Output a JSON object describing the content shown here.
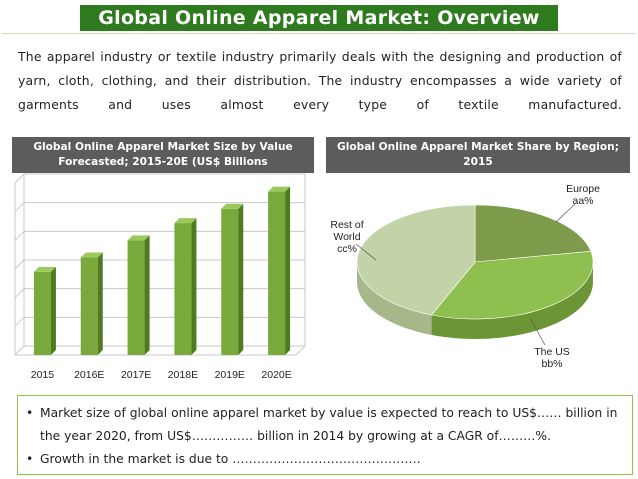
{
  "header": {
    "title": "Global Online Apparel Market: Overview"
  },
  "intro": {
    "text": "The apparel industry or textile industry primarily deals with the designing and production of yarn, cloth, clothing, and their distribution. The industry encompasses a wide variety of garments and uses almost every type of textile manufactured."
  },
  "panels": {
    "left_title": "Global Online Apparel Market Size by Value Forecasted; 2015-20E (US$ Billions",
    "right_title": "Global Online Apparel Market Share by Region; 2015"
  },
  "chart_data": [
    {
      "type": "bar",
      "title": "Global Online Apparel Market Size by Value Forecasted; 2015-20E (US$ Billions",
      "categories": [
        "2015",
        "2016E",
        "2017E",
        "2018E",
        "2019E",
        "2020E"
      ],
      "values": [
        2.9,
        3.4,
        4.0,
        4.6,
        5.1,
        5.7
      ],
      "ylim": [
        0,
        6
      ],
      "grid": true,
      "colors": {
        "bar_front": "#78a93a",
        "bar_side": "#4f7a20",
        "bar_top": "#9cc85e"
      }
    },
    {
      "type": "pie",
      "title": "Global Online Apparel Market Share by Region; 2015",
      "labels": [
        {
          "name": "Europe",
          "value": "aa%"
        },
        {
          "name": "The US",
          "value": "bb%"
        },
        {
          "name": "Rest of World",
          "value": "cc%"
        }
      ],
      "shares": [
        0.22,
        0.34,
        0.44
      ],
      "colors": [
        "#7d9b4b",
        "#8fbf4e",
        "#c3d3a8"
      ]
    }
  ],
  "bullets": [
    "Market size of global online apparel market by value is expected to reach to US$…… billion in the year 2020, from US$…………… billion in 2014 by growing at a CAGR of………%.",
    "Growth in the market is due to ………………………………………."
  ]
}
